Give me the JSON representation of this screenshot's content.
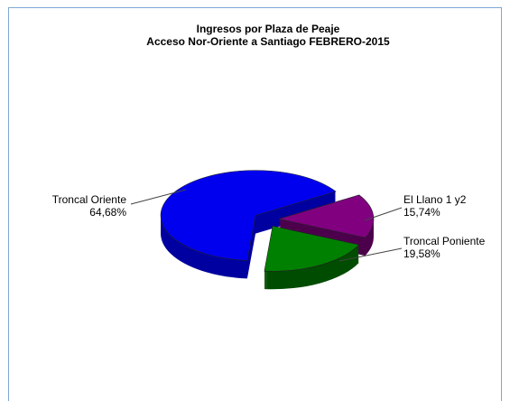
{
  "chart_data": {
    "type": "pie",
    "title": [
      "Ingresos por Plaza de Peaje",
      "Acceso Nor-Oriente a Santiago FEBRERO-2015"
    ],
    "categories": [
      "Troncal Oriente",
      "El Llano 1 y2",
      "Troncal Poniente"
    ],
    "values": [
      64.68,
      15.74,
      19.58
    ],
    "value_labels": [
      "64,68%",
      "15,74%",
      "19,58%"
    ],
    "colors": [
      "#0000ee",
      "#800080",
      "#008000"
    ],
    "side_colors": [
      "#0000a0",
      "#4c004c",
      "#004c00"
    ]
  }
}
